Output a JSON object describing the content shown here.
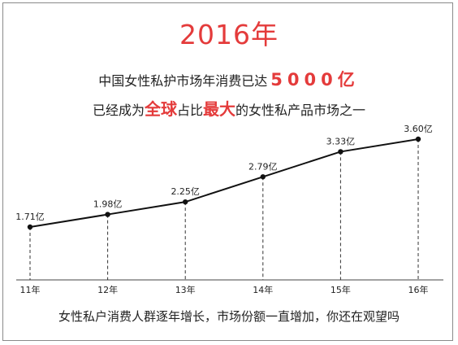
{
  "header": {
    "year_title": "2016年",
    "line1_prefix": "中国女性私护市场年消费已达",
    "line1_amount": "5000亿",
    "line2_part1": "已经成为",
    "line2_hl1": "全球",
    "line2_part2": "占比",
    "line2_hl2": "最大",
    "line2_part3": "的女性私产品市场之一"
  },
  "footer": {
    "text": "女性私户消费人群逐年增长，市场份额一直增加，你还在观望吗"
  },
  "colors": {
    "accent": "#e43b3b",
    "line": "#111111"
  },
  "chart_data": {
    "type": "line",
    "categories": [
      "11年",
      "12年",
      "13年",
      "14年",
      "15年",
      "16年"
    ],
    "x": [
      11,
      12,
      13,
      14,
      15,
      16
    ],
    "values": [
      1.71,
      1.98,
      2.25,
      2.79,
      3.33,
      3.6
    ],
    "value_labels": [
      "1.71亿",
      "1.98亿",
      "2.25亿",
      "2.79亿",
      "3.33亿",
      "3.60亿"
    ],
    "dashed_drop_lines": true,
    "title": "",
    "xlabel": "",
    "ylabel": ""
  }
}
